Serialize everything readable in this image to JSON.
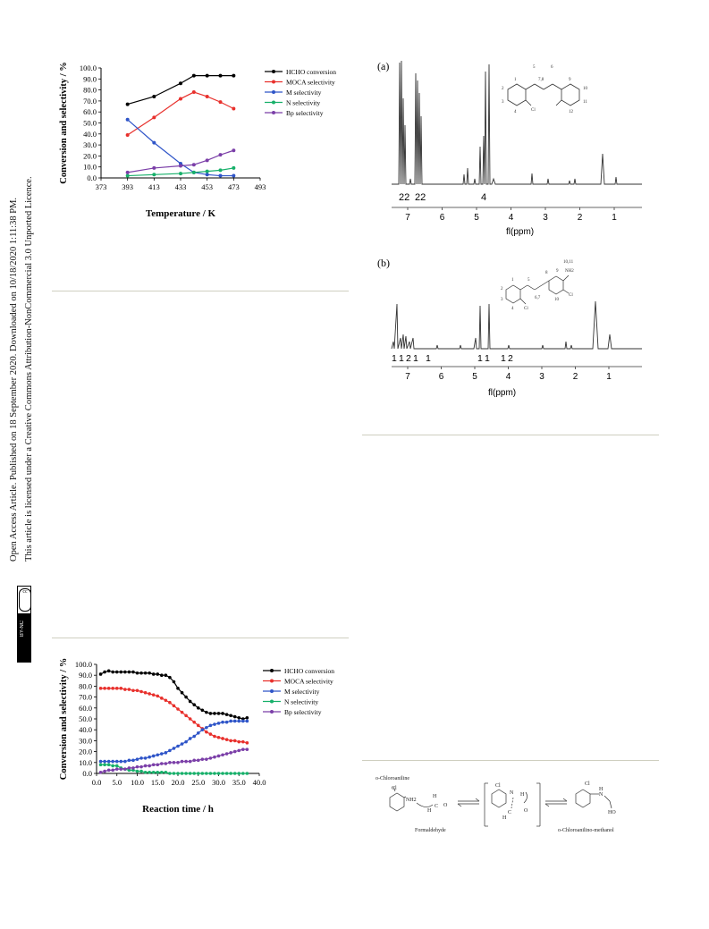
{
  "sidebar": {
    "line1": "Open Access Article. Published on 18 September 2020. Downloaded on 10/18/2020 1:11:38 PM.",
    "line2": "This article is licensed under a Creative Commons Attribution-NonCommercial 3.0 Unported Licence.",
    "badge_cc": "cc",
    "badge_text": "BY-NC"
  },
  "charts": [
    {
      "type": "line",
      "xlabel": "Temperature / K",
      "ylabel": "Conversion and selectivity / %",
      "x_ticks": [
        "373",
        "393",
        "413",
        "433",
        "453",
        "473",
        "493"
      ],
      "y_ticks": [
        "0.0",
        "10.0",
        "20.0",
        "30.0",
        "40.0",
        "50.0",
        "60.0",
        "70.0",
        "80.0",
        "90.0",
        "100.0"
      ],
      "xlim": [
        373,
        493
      ],
      "ylim": [
        0,
        100
      ],
      "legend": [
        "HCHO conversion",
        "MOCA selectivity",
        "M selectivity",
        "N selectivity",
        "Bp selectivity"
      ]
    },
    {
      "type": "line",
      "xlabel": "Reaction time / h",
      "ylabel": "Conversion and selectivity / %",
      "x_ticks": [
        "0.0",
        "5.0",
        "10.0",
        "15.0",
        "20.0",
        "25.0",
        "30.0",
        "35.0",
        "40.0"
      ],
      "y_ticks": [
        "0.0",
        "10.0",
        "20.0",
        "30.0",
        "40.0",
        "50.0",
        "60.0",
        "70.0",
        "80.0",
        "90.0",
        "100.0"
      ],
      "xlim": [
        0,
        40
      ],
      "ylim": [
        0,
        100
      ],
      "legend": [
        "HCHO conversion",
        "MOCA selectivity",
        "M selectivity",
        "N selectivity",
        "Bp selectivity"
      ]
    }
  ],
  "chart_data": [
    {
      "type": "line",
      "xlabel": "Temperature / K",
      "ylabel": "Conversion and selectivity / %",
      "xlim": [
        373,
        493
      ],
      "ylim": [
        0,
        100
      ],
      "x": [
        393,
        413,
        433,
        443,
        453,
        463,
        473
      ],
      "series": [
        {
          "name": "HCHO conversion",
          "color": "#000000",
          "values": [
            67,
            74,
            86,
            93,
            93,
            93,
            93
          ]
        },
        {
          "name": "MOCA selectivity",
          "color": "#e8302c",
          "values": [
            39,
            55,
            72,
            78,
            74,
            69,
            63
          ]
        },
        {
          "name": "M selectivity",
          "color": "#2f55c8",
          "values": [
            53,
            32,
            13,
            5,
            3,
            2,
            2
          ]
        },
        {
          "name": "N selectivity",
          "color": "#17b06a",
          "values": [
            2,
            3,
            4,
            5,
            6,
            7,
            9
          ]
        },
        {
          "name": "Bp selectivity",
          "color": "#7b3fa8",
          "values": [
            5,
            9,
            11,
            12,
            16,
            21,
            25
          ]
        }
      ],
      "legend_position": "right"
    },
    {
      "type": "line",
      "xlabel": "Reaction time / h",
      "ylabel": "Conversion and selectivity / %",
      "xlim": [
        0,
        40
      ],
      "ylim": [
        0,
        100
      ],
      "x": [
        1,
        2,
        3,
        4,
        5,
        6,
        7,
        8,
        9,
        10,
        11,
        12,
        13,
        14,
        15,
        16,
        17,
        18,
        19,
        20,
        21,
        22,
        23,
        24,
        25,
        26,
        27,
        28,
        29,
        30,
        31,
        32,
        33,
        34,
        35,
        36,
        37
      ],
      "series": [
        {
          "name": "HCHO conversion",
          "color": "#000000",
          "values": [
            91,
            93,
            94,
            93,
            93,
            93,
            93,
            93,
            93,
            92,
            92,
            92,
            92,
            91,
            91,
            90,
            90,
            88,
            84,
            78,
            74,
            70,
            66,
            63,
            60,
            58,
            56,
            55,
            55,
            55,
            55,
            54,
            53,
            52,
            51,
            50,
            51
          ]
        },
        {
          "name": "MOCA selectivity",
          "color": "#e8302c",
          "values": [
            78,
            78,
            78,
            78,
            78,
            78,
            77,
            77,
            76,
            76,
            75,
            74,
            73,
            72,
            71,
            69,
            67,
            65,
            62,
            59,
            56,
            53,
            50,
            47,
            44,
            41,
            38,
            36,
            34,
            33,
            32,
            31,
            30,
            30,
            29,
            29,
            28
          ]
        },
        {
          "name": "M selectivity",
          "color": "#2f55c8",
          "values": [
            11,
            11,
            11,
            11,
            11,
            11,
            11,
            12,
            12,
            13,
            14,
            14,
            15,
            16,
            17,
            18,
            19,
            21,
            23,
            25,
            27,
            29,
            32,
            34,
            37,
            40,
            42,
            44,
            45,
            46,
            47,
            47,
            48,
            48,
            48,
            48,
            48
          ]
        },
        {
          "name": "N selectivity",
          "color": "#17b06a",
          "values": [
            8,
            8,
            8,
            7,
            7,
            5,
            4,
            3,
            3,
            2,
            2,
            1,
            1,
            1,
            1,
            1,
            1,
            0,
            0,
            0,
            0,
            0,
            0,
            0,
            0,
            0,
            0,
            0,
            0,
            0,
            0,
            0,
            0,
            0,
            0,
            0,
            0
          ]
        },
        {
          "name": "Bp selectivity",
          "color": "#7b3fa8",
          "values": [
            1,
            2,
            3,
            3,
            4,
            4,
            4,
            5,
            5,
            6,
            6,
            7,
            7,
            8,
            8,
            9,
            9,
            10,
            10,
            10,
            11,
            11,
            11,
            12,
            12,
            13,
            13,
            14,
            15,
            16,
            17,
            18,
            19,
            20,
            21,
            22,
            22
          ]
        }
      ],
      "legend_position": "right"
    }
  ],
  "nmr": {
    "a": {
      "label": "(a)",
      "xlabel": "fl(ppm)",
      "ticks": [
        "7",
        "6",
        "5",
        "4",
        "3",
        "2",
        "1"
      ],
      "integrals": [
        "22",
        "22",
        "4"
      ],
      "atom_labels": [
        "1",
        "2",
        "3",
        "4",
        "5",
        "6",
        "7,8",
        "9",
        "10",
        "11",
        "12"
      ],
      "cl": "Cl"
    },
    "b": {
      "label": "(b)",
      "xlabel": "fl(ppm)",
      "ticks": [
        "7",
        "6",
        "5",
        "4",
        "3",
        "2",
        "1"
      ],
      "integrals": [
        "1",
        "1",
        "2",
        "1",
        "1",
        "1",
        "1",
        "1",
        "2"
      ],
      "atom_labels": [
        "1",
        "2",
        "3",
        "4",
        "5",
        "6,7",
        "8",
        "9",
        "10",
        "10,11"
      ],
      "nh2": "NH2",
      "cl": "Cl"
    }
  },
  "scheme": {
    "reactant": "o-Chloroaniline",
    "reagent": "Formaldehyde",
    "product": "o-Chloroanilino-methanol",
    "cl": "Cl",
    "nh2": "NH2",
    "h": "H",
    "n": "N",
    "o": "O",
    "c": "C",
    "ho": "HO"
  }
}
